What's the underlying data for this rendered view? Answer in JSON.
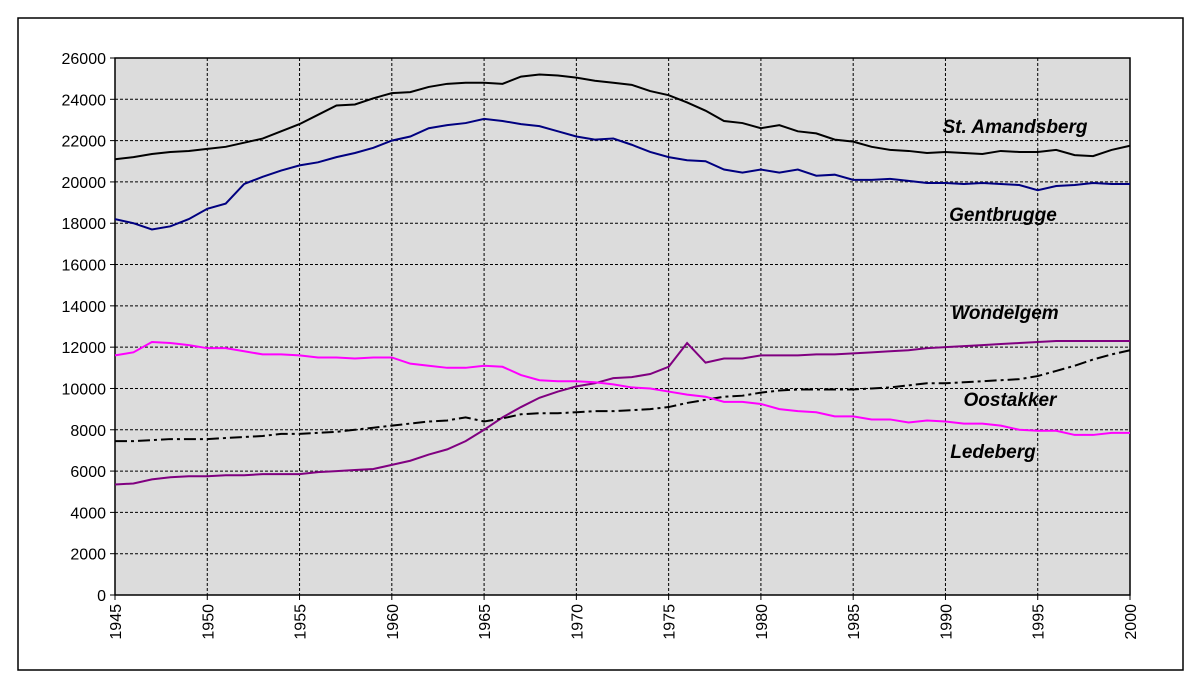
{
  "chart_data": {
    "type": "line",
    "x": [
      1945,
      1946,
      1947,
      1948,
      1949,
      1950,
      1951,
      1952,
      1953,
      1954,
      1955,
      1956,
      1957,
      1958,
      1959,
      1960,
      1961,
      1962,
      1963,
      1964,
      1965,
      1966,
      1967,
      1968,
      1969,
      1970,
      1971,
      1972,
      1973,
      1974,
      1975,
      1976,
      1977,
      1978,
      1979,
      1980,
      1981,
      1982,
      1983,
      1984,
      1985,
      1986,
      1987,
      1988,
      1989,
      1990,
      1991,
      1992,
      1993,
      1994,
      1995,
      1996,
      1997,
      1998,
      1999,
      2000
    ],
    "series": [
      {
        "name": "St. Amandsberg",
        "color": "#000000",
        "dash": "solid",
        "values": [
          21100,
          21200,
          21350,
          21450,
          21500,
          21600,
          21700,
          21900,
          22100,
          22450,
          22800,
          23250,
          23700,
          23750,
          24050,
          24300,
          24350,
          24600,
          24750,
          24800,
          24800,
          24750,
          25100,
          25200,
          25150,
          25050,
          24900,
          24800,
          24700,
          24400,
          24200,
          23850,
          23450,
          22950,
          22850,
          22600,
          22750,
          22450,
          22350,
          22050,
          21950,
          21700,
          21550,
          21500,
          21400,
          21450,
          21400,
          21350,
          21500,
          21450,
          21450,
          21550,
          21300,
          21250,
          21550,
          21750
        ]
      },
      {
        "name": "Gentbrugge",
        "color": "#000080",
        "dash": "solid",
        "values": [
          18200,
          18000,
          17700,
          17850,
          18200,
          18700,
          18950,
          19900,
          20250,
          20550,
          20800,
          20950,
          21200,
          21400,
          21650,
          22000,
          22200,
          22600,
          22750,
          22850,
          23050,
          22950,
          22800,
          22700,
          22450,
          22200,
          22050,
          22100,
          21800,
          21450,
          21200,
          21050,
          21000,
          20600,
          20450,
          20600,
          20450,
          20600,
          20300,
          20350,
          20100,
          20100,
          20150,
          20050,
          19950,
          19950,
          19900,
          19950,
          19900,
          19850,
          19600,
          19800,
          19850,
          19950,
          19900,
          19900
        ]
      },
      {
        "name": "Wondelgem",
        "color": "#800080",
        "dash": "solid",
        "values": [
          5350,
          5400,
          5600,
          5700,
          5750,
          5750,
          5800,
          5800,
          5850,
          5850,
          5850,
          5950,
          6000,
          6050,
          6100,
          6300,
          6500,
          6800,
          7050,
          7450,
          8000,
          8600,
          9100,
          9550,
          9850,
          10100,
          10250,
          10500,
          10550,
          10700,
          11050,
          12200,
          11250,
          11450,
          11450,
          11600,
          11600,
          11600,
          11650,
          11650,
          11700,
          11750,
          11800,
          11850,
          11950,
          12000,
          12050,
          12100,
          12150,
          12200,
          12250,
          12300,
          12300,
          12300,
          12300,
          12300
        ]
      },
      {
        "name": "Oostakker",
        "color": "#000000",
        "dash": "dashdot",
        "values": [
          7450,
          7450,
          7500,
          7550,
          7550,
          7550,
          7600,
          7650,
          7700,
          7800,
          7800,
          7850,
          7900,
          8000,
          8100,
          8200,
          8300,
          8400,
          8450,
          8600,
          8400,
          8550,
          8750,
          8800,
          8800,
          8850,
          8900,
          8900,
          8950,
          9000,
          9100,
          9300,
          9450,
          9600,
          9650,
          9800,
          9900,
          9950,
          9950,
          9950,
          9950,
          10000,
          10050,
          10150,
          10250,
          10250,
          10300,
          10350,
          10400,
          10450,
          10600,
          10850,
          11100,
          11400,
          11650,
          11850
        ]
      },
      {
        "name": "Ledeberg",
        "color": "#ff00ff",
        "dash": "solid",
        "values": [
          11600,
          11750,
          12250,
          12200,
          12100,
          11950,
          11950,
          11800,
          11650,
          11650,
          11600,
          11500,
          11500,
          11450,
          11500,
          11500,
          11200,
          11100,
          11000,
          11000,
          11100,
          11050,
          10650,
          10400,
          10350,
          10350,
          10300,
          10200,
          10050,
          10000,
          9850,
          9700,
          9600,
          9350,
          9350,
          9250,
          9000,
          8900,
          8850,
          8650,
          8650,
          8500,
          8500,
          8350,
          8450,
          8400,
          8300,
          8300,
          8200,
          8000,
          7950,
          7950,
          7750,
          7750,
          7850,
          7850
        ]
      }
    ],
    "xlim": [
      1945,
      2000
    ],
    "xticks": [
      1945,
      1950,
      1955,
      1960,
      1965,
      1970,
      1975,
      1980,
      1985,
      1990,
      1995,
      2000
    ],
    "ylim": [
      0,
      26000
    ],
    "yticks": [
      0,
      2000,
      4000,
      6000,
      8000,
      10000,
      12000,
      14000,
      16000,
      18000,
      20000,
      22000,
      24000,
      26000
    ],
    "grid": true
  }
}
